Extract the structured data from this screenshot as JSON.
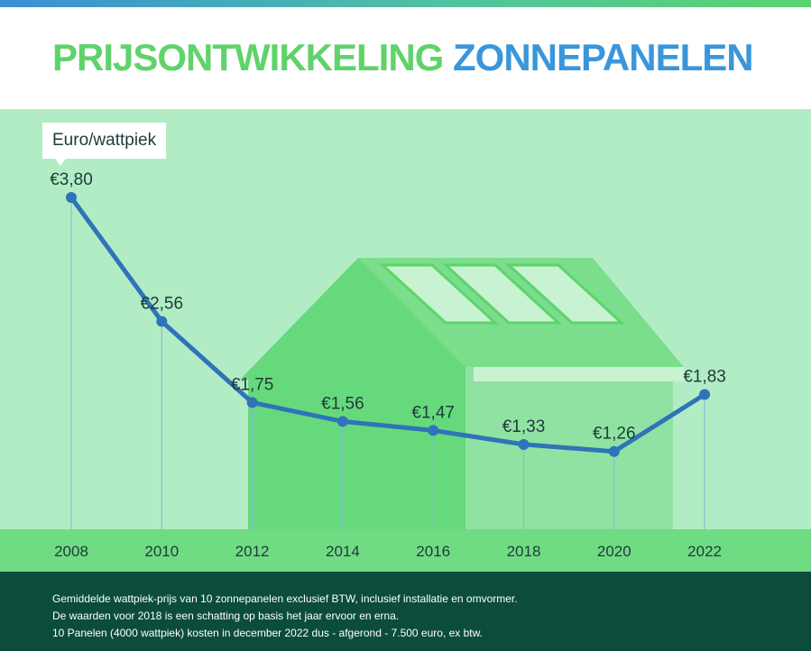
{
  "title": {
    "part1": "PRIJSONTWIKKELING",
    "part2": "ZONNEPANELEN"
  },
  "colors": {
    "title_green": "#5fd36a",
    "title_blue": "#3a96db",
    "background": "#b2ecc4",
    "axis_band": "#6fdc84",
    "house_main": "#67d97d",
    "house_light": "#90e2a2",
    "house_roof": "#7ade8c",
    "solar_panel": "#c7f3d2",
    "line": "#2f73b9",
    "text_dark": "#1e3a3a",
    "footer": "#0b4d3a"
  },
  "chart_data": {
    "type": "line",
    "unit_label": "Euro/wattpiek",
    "x": [
      "2008",
      "2010",
      "2012",
      "2014",
      "2016",
      "2018",
      "2020",
      "2022"
    ],
    "y": [
      3.8,
      2.56,
      1.75,
      1.56,
      1.47,
      1.33,
      1.26,
      1.83
    ],
    "value_labels": [
      "€3,80",
      "€2,56",
      "€1,75",
      "€1,56",
      "€1,47",
      "€1,33",
      "€1,26",
      "€1,83"
    ],
    "ylim": [
      0.5,
      3.8
    ],
    "grid": "vertical guide lines per year"
  },
  "footer": {
    "lines": [
      "Gemiddelde wattpiek-prijs van 10 zonnepanelen exclusief BTW, inclusief installatie en omvormer.",
      "De waarden voor 2018 is een schatting op basis het jaar ervoor en erna.",
      "10 Panelen (4000 wattpiek) kosten in december 2022 dus - afgerond - 7.500 euro, ex btw."
    ]
  }
}
